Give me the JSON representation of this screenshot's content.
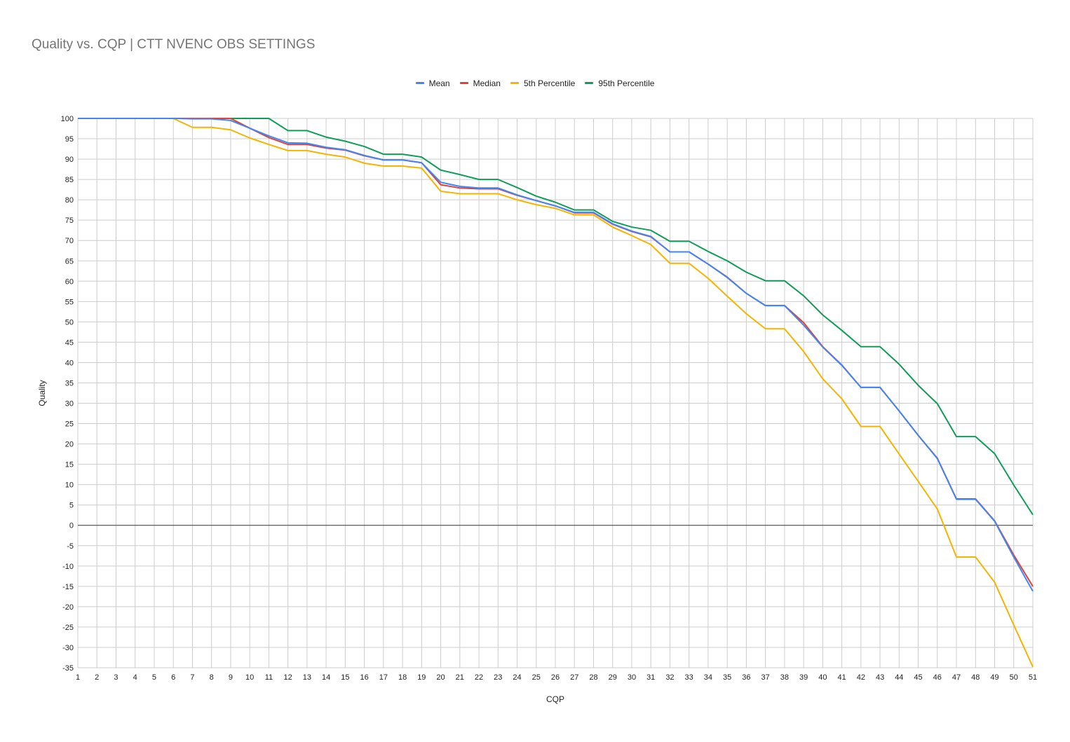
{
  "chart_data": {
    "type": "line",
    "title": "Quality vs. CQP | CTT NVENC OBS SETTINGS",
    "xlabel": "CQP",
    "ylabel": "Quality",
    "ylim": [
      -35,
      100
    ],
    "yticks": [
      100,
      95,
      90,
      85,
      80,
      75,
      70,
      65,
      60,
      55,
      50,
      45,
      40,
      35,
      30,
      25,
      20,
      15,
      10,
      5,
      0,
      -5,
      -10,
      -15,
      -20,
      -25,
      -30,
      -35
    ],
    "x": [
      1,
      2,
      3,
      4,
      5,
      6,
      7,
      8,
      9,
      10,
      11,
      12,
      13,
      14,
      15,
      16,
      17,
      18,
      19,
      20,
      21,
      22,
      23,
      24,
      25,
      26,
      27,
      28,
      29,
      30,
      31,
      32,
      33,
      34,
      35,
      36,
      37,
      38,
      39,
      40,
      41,
      42,
      43,
      44,
      45,
      46,
      47,
      48,
      49,
      50,
      51
    ],
    "legend_position": "top",
    "grid": true,
    "series": [
      {
        "name": "Mean",
        "color": "#4285f4",
        "values": [
          100,
          100,
          100,
          100,
          100,
          100,
          99.9,
          99.9,
          99.5,
          97.6,
          95.7,
          94.0,
          93.9,
          92.9,
          92.3,
          90.9,
          89.8,
          89.8,
          89.1,
          84.3,
          83.3,
          82.9,
          82.9,
          81.2,
          79.8,
          78.5,
          76.9,
          76.9,
          74.1,
          72.3,
          71.0,
          67.2,
          67.2,
          64.2,
          60.9,
          57.0,
          54.0,
          54.0,
          49.2,
          43.8,
          39.3,
          33.9,
          33.9,
          28.1,
          22.1,
          16.4,
          6.4,
          6.4,
          1.0,
          -7.8,
          -16.2
        ]
      },
      {
        "name": "Median",
        "color": "#db4437",
        "values": [
          100,
          100,
          100,
          100,
          100,
          100,
          100,
          100,
          100,
          97.6,
          95.3,
          93.6,
          93.6,
          92.7,
          92.2,
          90.8,
          89.8,
          89.8,
          89.1,
          83.7,
          82.9,
          82.7,
          82.7,
          81.1,
          79.8,
          78.5,
          76.8,
          76.8,
          74.0,
          72.2,
          70.9,
          67.2,
          67.2,
          64.2,
          61.0,
          57.0,
          54.0,
          54.0,
          49.8,
          43.9,
          39.4,
          33.9,
          33.9,
          28.1,
          22.1,
          16.5,
          6.5,
          6.5,
          1.1,
          -7.3,
          -15.0
        ]
      },
      {
        "name": "5th Percentile",
        "color": "#f4b400",
        "values": [
          100,
          100,
          100,
          100,
          100,
          100,
          97.8,
          97.8,
          97.2,
          95.2,
          93.6,
          92.1,
          92.1,
          91.2,
          90.5,
          89.0,
          88.3,
          88.3,
          87.8,
          82.1,
          81.5,
          81.5,
          81.5,
          80.0,
          78.8,
          77.9,
          76.3,
          76.3,
          73.3,
          71.2,
          69.0,
          64.4,
          64.4,
          60.7,
          56.3,
          52.0,
          48.3,
          48.3,
          42.7,
          36.0,
          31.1,
          24.3,
          24.3,
          17.5,
          10.8,
          4.0,
          -7.8,
          -7.8,
          -14.0,
          -24.5,
          -34.8
        ]
      },
      {
        "name": "95th Percentile",
        "color": "#0f9d58",
        "values": [
          100,
          100,
          100,
          100,
          100,
          100,
          100,
          100,
          100,
          100,
          100,
          97.0,
          97.0,
          95.4,
          94.4,
          93.1,
          91.2,
          91.2,
          90.5,
          87.3,
          86.2,
          85.0,
          85.0,
          83.0,
          80.9,
          79.4,
          77.5,
          77.5,
          74.7,
          73.3,
          72.5,
          69.8,
          69.8,
          67.3,
          65.0,
          62.2,
          60.1,
          60.1,
          56.4,
          51.7,
          47.9,
          43.9,
          43.9,
          39.6,
          34.4,
          29.9,
          21.8,
          21.8,
          17.6,
          9.9,
          2.6
        ]
      }
    ]
  }
}
